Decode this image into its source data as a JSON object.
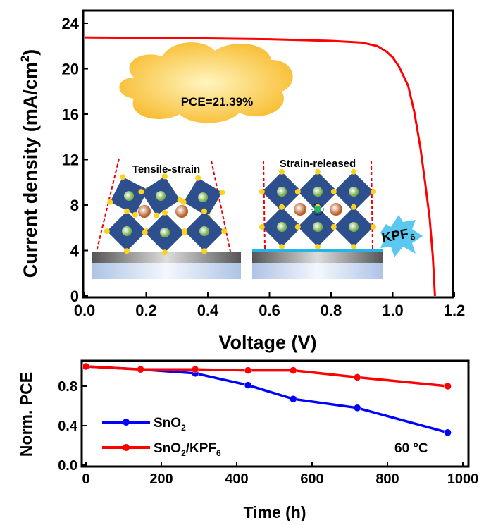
{
  "chart_data": [
    {
      "type": "line",
      "title": "",
      "xlabel": "Voltage (V)",
      "ylabel": "Current density (mA/cm²)",
      "ylabel_main": "Current density (mA/cm",
      "ylabel_sup": "2",
      "ylabel_end": ")",
      "xlim": [
        0,
        1.2
      ],
      "ylim": [
        0,
        24
      ],
      "xticks": [
        "0.0",
        "0.2",
        "0.4",
        "0.6",
        "0.8",
        "1.0",
        "1.2"
      ],
      "yticks": [
        "0",
        "4",
        "8",
        "12",
        "16",
        "20",
        "24"
      ],
      "series": [
        {
          "name": "J-V",
          "color": "#ff0000",
          "x": [
            0,
            0.3,
            0.6,
            0.8,
            0.9,
            0.95,
            0.98,
            1.0,
            1.02,
            1.05,
            1.07,
            1.09,
            1.105,
            1.12,
            1.13,
            1.137
          ],
          "y": [
            22.75,
            22.7,
            22.6,
            22.45,
            22.3,
            22.0,
            21.5,
            21.0,
            20.2,
            18.5,
            16.2,
            13.0,
            10.0,
            6.8,
            3.5,
            0
          ]
        }
      ],
      "annotations": {
        "pce": "PCE=21.39%",
        "left_inset": "Tensile-strain",
        "right_inset": "Strain-released",
        "kpf_main": "KPF",
        "kpf_sub": "6"
      }
    },
    {
      "type": "line",
      "title": "",
      "xlabel": "Time (h)",
      "ylabel": "Norm. PCE",
      "xlim": [
        0,
        1000
      ],
      "ylim": [
        0,
        1.0
      ],
      "xticks": [
        "0",
        "200",
        "400",
        "600",
        "800",
        "1000"
      ],
      "yticks": [
        "0.0",
        "0.4",
        "0.8"
      ],
      "legend_position": "bottom-left",
      "annotation": "60 °C",
      "series": [
        {
          "name": "SnO2",
          "label_main": "SnO",
          "label_sub": "2",
          "label_rest": "",
          "color": "#0000ff",
          "x": [
            0,
            145,
            290,
            430,
            550,
            720,
            960
          ],
          "y": [
            1.0,
            0.97,
            0.93,
            0.81,
            0.67,
            0.58,
            0.33
          ]
        },
        {
          "name": "SnO2/KPF6",
          "label_main": "SnO",
          "label_sub": "2",
          "label_rest": "/KPF",
          "label_sub2": "6",
          "color": "#ff0000",
          "x": [
            0,
            145,
            290,
            430,
            550,
            720,
            960
          ],
          "y": [
            1.0,
            0.97,
            0.97,
            0.96,
            0.96,
            0.89,
            0.8
          ]
        }
      ]
    }
  ]
}
